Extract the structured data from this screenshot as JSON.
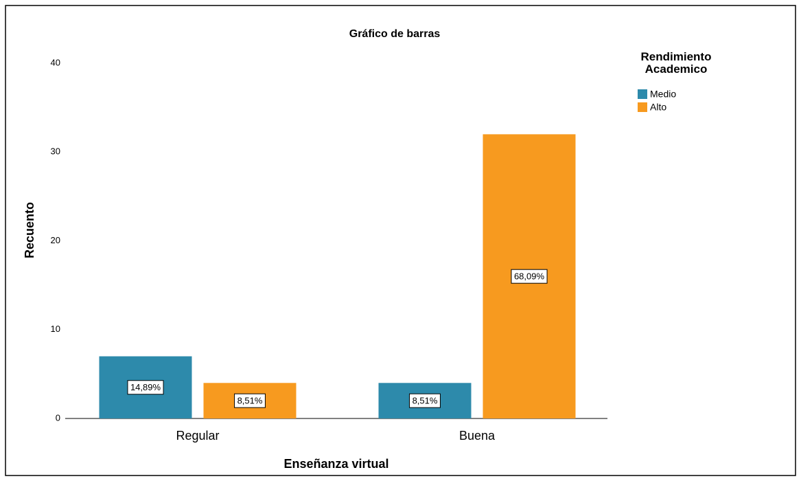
{
  "chart_data": {
    "type": "bar",
    "title": "Gráfico de barras",
    "x_label": "Enseñanza virtual",
    "y_label": "Recuento",
    "legend_title": "Rendimiento Academico",
    "legend_position": "upper right",
    "categories": [
      "Regular",
      "Buena"
    ],
    "series": [
      {
        "name": "Medio",
        "color": "#2d8aab",
        "values": [
          7,
          4
        ],
        "percentages": [
          14.89,
          8.51
        ],
        "percentage_labels": [
          "14,89%",
          "8,51%"
        ]
      },
      {
        "name": "Alto",
        "color": "#f79a1f",
        "values": [
          4,
          32
        ],
        "percentages": [
          8.51,
          68.09
        ],
        "percentage_labels": [
          "8,51%",
          "68,09%"
        ]
      }
    ],
    "ylim": [
      0,
      40
    ],
    "yticks": [
      0,
      10,
      20,
      30,
      40
    ],
    "grid": false
  }
}
